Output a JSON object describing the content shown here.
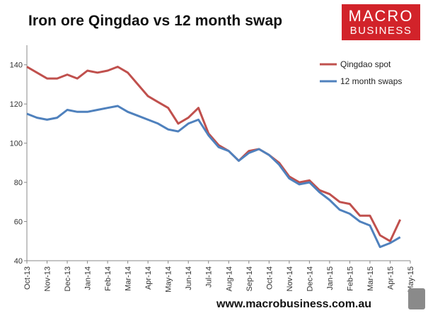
{
  "title": "Iron ore Qingdao vs 12 month swap",
  "logo": {
    "line1": "MACRO",
    "line2": "BUSINESS"
  },
  "footer": "www.macrobusiness.com.au",
  "colors": {
    "spot": "#c0504d",
    "swaps": "#4f81bd",
    "logo": "#d2232a"
  },
  "chart_data": {
    "type": "line",
    "title": "Iron ore Qingdao vs 12 month swap",
    "xlabel": "",
    "ylabel": "",
    "ylim": [
      40,
      150
    ],
    "yticks": [
      40,
      60,
      80,
      100,
      120,
      140
    ],
    "x_tick_labels": [
      "Oct-13",
      "Nov-13",
      "Dec-13",
      "Jan-14",
      "Feb-14",
      "Mar-14",
      "Apr-14",
      "May-14",
      "Jun-14",
      "Jul-14",
      "Aug-14",
      "Sep-14",
      "Oct-14",
      "Nov-14",
      "Dec-14",
      "Jan-15",
      "Feb-15",
      "Mar-15",
      "Apr-15",
      "May-15"
    ],
    "grid": false,
    "legend": "top-right",
    "series": [
      {
        "name": "Qingdao spot",
        "color": "#c0504d",
        "x": [
          "Oct-13",
          "mid Oct-13",
          "Nov-13",
          "mid Nov-13",
          "Dec-13",
          "mid Dec-13",
          "Jan-14",
          "mid Jan-14",
          "Feb-14",
          "mid Feb-14",
          "Mar-14",
          "mid Mar-14",
          "Apr-14",
          "mid Apr-14",
          "May-14",
          "mid May-14",
          "Jun-14",
          "mid Jun-14",
          "Jul-14",
          "mid Jul-14",
          "Aug-14",
          "mid Aug-14",
          "Sep-14",
          "mid Sep-14",
          "Oct-14",
          "mid Oct-14",
          "Nov-14",
          "mid Nov-14",
          "Dec-14",
          "mid Dec-14",
          "Jan-15",
          "mid Jan-15",
          "Feb-15",
          "mid Feb-15",
          "Mar-15",
          "mid Mar-15",
          "Apr-15",
          "mid Apr-15"
        ],
        "values": [
          139,
          136,
          133,
          133,
          135,
          133,
          137,
          136,
          137,
          139,
          136,
          130,
          124,
          121,
          118,
          110,
          113,
          118,
          105,
          99,
          96,
          91,
          96,
          97,
          94,
          90,
          83,
          80,
          81,
          76,
          74,
          70,
          69,
          63,
          63,
          53,
          50,
          61
        ]
      },
      {
        "name": "12 month swaps",
        "color": "#4f81bd",
        "x": [
          "Oct-13",
          "mid Oct-13",
          "Nov-13",
          "mid Nov-13",
          "Dec-13",
          "mid Dec-13",
          "Jan-14",
          "mid Jan-14",
          "Feb-14",
          "mid Feb-14",
          "Mar-14",
          "mid Mar-14",
          "Apr-14",
          "mid Apr-14",
          "May-14",
          "mid May-14",
          "Jun-14",
          "mid Jun-14",
          "Jul-14",
          "mid Jul-14",
          "Aug-14",
          "mid Aug-14",
          "Sep-14",
          "mid Sep-14",
          "Oct-14",
          "mid Oct-14",
          "Nov-14",
          "mid Nov-14",
          "Dec-14",
          "mid Dec-14",
          "Jan-15",
          "mid Jan-15",
          "Feb-15",
          "mid Feb-15",
          "Mar-15",
          "mid Mar-15",
          "Apr-15",
          "mid Apr-15"
        ],
        "values": [
          115,
          113,
          112,
          113,
          117,
          116,
          116,
          117,
          118,
          119,
          116,
          114,
          112,
          110,
          107,
          106,
          110,
          112,
          104,
          98,
          96,
          91,
          95,
          97,
          94,
          89,
          82,
          79,
          80,
          75,
          71,
          66,
          64,
          60,
          58,
          47,
          49,
          52
        ]
      }
    ]
  }
}
